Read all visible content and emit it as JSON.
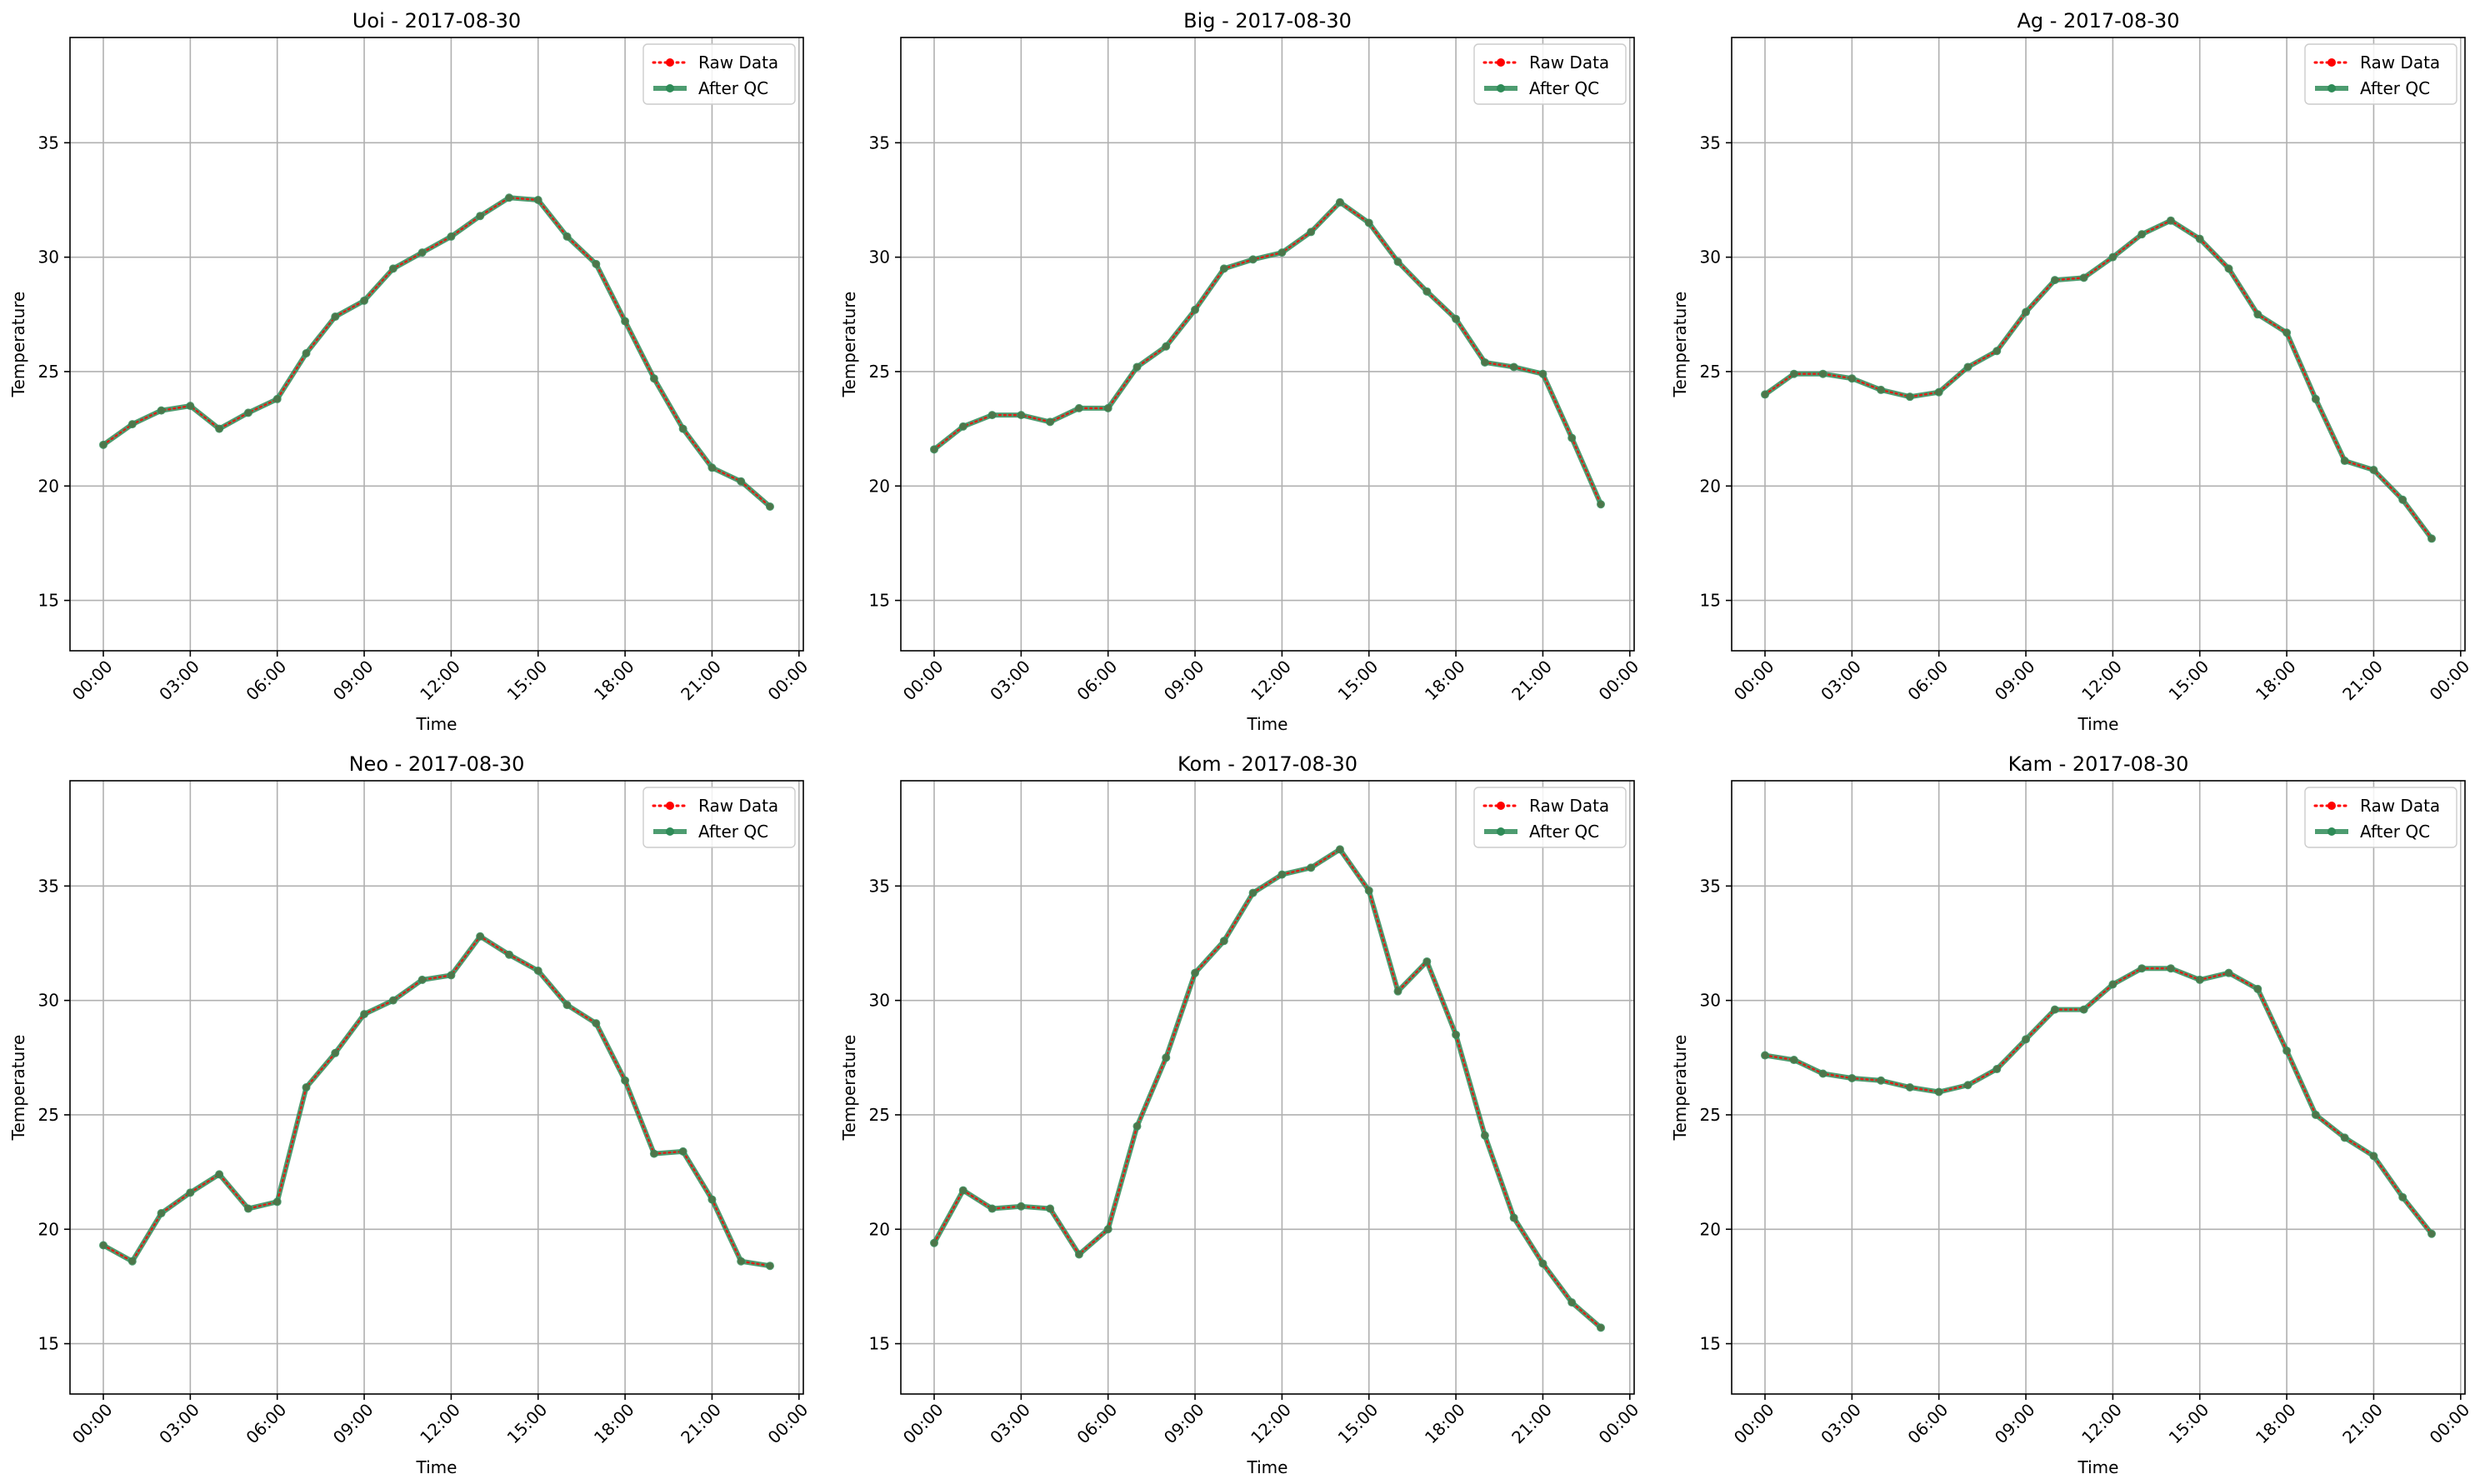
{
  "figure": {
    "legend_labels": {
      "raw": "Raw Data",
      "qc": "After QC"
    },
    "colors": {
      "raw": "#ff0000",
      "qc": "#2e8b57",
      "grid": "#b0b0b0",
      "axes": "#000000"
    }
  },
  "chart_data": [
    {
      "type": "line",
      "title": "Uoi - 2017-08-30",
      "xlabel": "Time",
      "ylabel": "Temperature",
      "xlim": [
        -1.15,
        24.15
      ],
      "ylim": [
        12.8,
        39.6
      ],
      "x_ticks": [
        0,
        3,
        6,
        9,
        12,
        15,
        18,
        21,
        24
      ],
      "x_tick_labels": [
        "00:00",
        "03:00",
        "06:00",
        "09:00",
        "12:00",
        "15:00",
        "18:00",
        "21:00",
        "00:00"
      ],
      "y_ticks": [
        15,
        20,
        25,
        30,
        35
      ],
      "grid": true,
      "legend": "top-right",
      "x": [
        0,
        1,
        2,
        3,
        4,
        5,
        6,
        7,
        8,
        9,
        10,
        11,
        12,
        13,
        14,
        15,
        16,
        17,
        18,
        19,
        20,
        21,
        22,
        23
      ],
      "series": [
        {
          "name": "Raw Data",
          "color": "#ff0000",
          "style": "dotted",
          "values": [
            21.8,
            22.7,
            23.3,
            23.5,
            22.5,
            23.2,
            23.8,
            25.8,
            27.4,
            28.1,
            29.5,
            30.2,
            30.9,
            31.8,
            32.6,
            32.5,
            30.9,
            29.7,
            27.2,
            24.7,
            22.5,
            20.8,
            20.2,
            19.1
          ]
        },
        {
          "name": "After QC",
          "color": "#2e8b57",
          "style": "solid",
          "values": [
            21.8,
            22.7,
            23.3,
            23.5,
            22.5,
            23.2,
            23.8,
            25.8,
            27.4,
            28.1,
            29.5,
            30.2,
            30.9,
            31.8,
            32.6,
            32.5,
            30.9,
            29.7,
            27.2,
            24.7,
            22.5,
            20.8,
            20.2,
            19.1
          ]
        }
      ]
    },
    {
      "type": "line",
      "title": "Big - 2017-08-30",
      "xlabel": "Time",
      "ylabel": "Temperature",
      "xlim": [
        -1.15,
        24.15
      ],
      "ylim": [
        12.8,
        39.6
      ],
      "x_ticks": [
        0,
        3,
        6,
        9,
        12,
        15,
        18,
        21,
        24
      ],
      "x_tick_labels": [
        "00:00",
        "03:00",
        "06:00",
        "09:00",
        "12:00",
        "15:00",
        "18:00",
        "21:00",
        "00:00"
      ],
      "y_ticks": [
        15,
        20,
        25,
        30,
        35
      ],
      "grid": true,
      "legend": "top-right",
      "x": [
        0,
        1,
        2,
        3,
        4,
        5,
        6,
        7,
        8,
        9,
        10,
        11,
        12,
        13,
        14,
        15,
        16,
        17,
        18,
        19,
        20,
        21,
        22,
        23
      ],
      "series": [
        {
          "name": "Raw Data",
          "color": "#ff0000",
          "style": "dotted",
          "values": [
            21.6,
            22.6,
            23.1,
            23.1,
            22.8,
            23.4,
            23.4,
            25.2,
            26.1,
            27.7,
            29.5,
            29.9,
            30.2,
            31.1,
            32.4,
            31.5,
            29.8,
            28.5,
            27.3,
            25.4,
            25.2,
            24.9,
            22.1,
            19.2
          ]
        },
        {
          "name": "After QC",
          "color": "#2e8b57",
          "style": "solid",
          "values": [
            21.6,
            22.6,
            23.1,
            23.1,
            22.8,
            23.4,
            23.4,
            25.2,
            26.1,
            27.7,
            29.5,
            29.9,
            30.2,
            31.1,
            32.4,
            31.5,
            29.8,
            28.5,
            27.3,
            25.4,
            25.2,
            24.9,
            22.1,
            19.2
          ]
        }
      ]
    },
    {
      "type": "line",
      "title": "Ag - 2017-08-30",
      "xlabel": "Time",
      "ylabel": "Temperature",
      "xlim": [
        -1.15,
        24.15
      ],
      "ylim": [
        12.8,
        39.6
      ],
      "x_ticks": [
        0,
        3,
        6,
        9,
        12,
        15,
        18,
        21,
        24
      ],
      "x_tick_labels": [
        "00:00",
        "03:00",
        "06:00",
        "09:00",
        "12:00",
        "15:00",
        "18:00",
        "21:00",
        "00:00"
      ],
      "y_ticks": [
        15,
        20,
        25,
        30,
        35
      ],
      "grid": true,
      "legend": "top-right",
      "x": [
        0,
        1,
        2,
        3,
        4,
        5,
        6,
        7,
        8,
        9,
        10,
        11,
        12,
        13,
        14,
        15,
        16,
        17,
        18,
        19,
        20,
        21,
        22,
        23
      ],
      "series": [
        {
          "name": "Raw Data",
          "color": "#ff0000",
          "style": "dotted",
          "values": [
            24.0,
            24.9,
            24.9,
            24.7,
            24.2,
            23.9,
            24.1,
            25.2,
            25.9,
            27.6,
            29.0,
            29.1,
            30.0,
            31.0,
            31.6,
            30.8,
            29.5,
            27.5,
            26.7,
            23.8,
            21.1,
            20.7,
            19.4,
            17.7
          ]
        },
        {
          "name": "After QC",
          "color": "#2e8b57",
          "style": "solid",
          "values": [
            24.0,
            24.9,
            24.9,
            24.7,
            24.2,
            23.9,
            24.1,
            25.2,
            25.9,
            27.6,
            29.0,
            29.1,
            30.0,
            31.0,
            31.6,
            30.8,
            29.5,
            27.5,
            26.7,
            23.8,
            21.1,
            20.7,
            19.4,
            17.7
          ]
        }
      ]
    },
    {
      "type": "line",
      "title": "Neo - 2017-08-30",
      "xlabel": "Time",
      "ylabel": "Temperature",
      "xlim": [
        -1.15,
        24.15
      ],
      "ylim": [
        12.8,
        39.6
      ],
      "x_ticks": [
        0,
        3,
        6,
        9,
        12,
        15,
        18,
        21,
        24
      ],
      "x_tick_labels": [
        "00:00",
        "03:00",
        "06:00",
        "09:00",
        "12:00",
        "15:00",
        "18:00",
        "21:00",
        "00:00"
      ],
      "y_ticks": [
        15,
        20,
        25,
        30,
        35
      ],
      "grid": true,
      "legend": "top-right",
      "x": [
        0,
        1,
        2,
        3,
        4,
        5,
        6,
        7,
        8,
        9,
        10,
        11,
        12,
        13,
        14,
        15,
        16,
        17,
        18,
        19,
        20,
        21,
        22,
        23
      ],
      "series": [
        {
          "name": "Raw Data",
          "color": "#ff0000",
          "style": "dotted",
          "values": [
            19.3,
            18.6,
            20.7,
            21.6,
            22.4,
            20.9,
            21.2,
            26.2,
            27.7,
            29.4,
            30.0,
            30.9,
            31.1,
            32.8,
            32.0,
            31.3,
            29.8,
            29.0,
            26.5,
            23.3,
            23.4,
            21.3,
            18.6,
            18.4
          ]
        },
        {
          "name": "After QC",
          "color": "#2e8b57",
          "style": "solid",
          "values": [
            19.3,
            18.6,
            20.7,
            21.6,
            22.4,
            20.9,
            21.2,
            26.2,
            27.7,
            29.4,
            30.0,
            30.9,
            31.1,
            32.8,
            32.0,
            31.3,
            29.8,
            29.0,
            26.5,
            23.3,
            23.4,
            21.3,
            18.6,
            18.4
          ]
        }
      ]
    },
    {
      "type": "line",
      "title": "Kom - 2017-08-30",
      "xlabel": "Time",
      "ylabel": "Temperature",
      "xlim": [
        -1.15,
        24.15
      ],
      "ylim": [
        12.8,
        39.6
      ],
      "x_ticks": [
        0,
        3,
        6,
        9,
        12,
        15,
        18,
        21,
        24
      ],
      "x_tick_labels": [
        "00:00",
        "03:00",
        "06:00",
        "09:00",
        "12:00",
        "15:00",
        "18:00",
        "21:00",
        "00:00"
      ],
      "y_ticks": [
        15,
        20,
        25,
        30,
        35
      ],
      "grid": true,
      "legend": "top-right",
      "x": [
        0,
        1,
        2,
        3,
        4,
        5,
        6,
        7,
        8,
        9,
        10,
        11,
        12,
        13,
        14,
        15,
        16,
        17,
        18,
        19,
        20,
        21,
        22,
        23
      ],
      "series": [
        {
          "name": "Raw Data",
          "color": "#ff0000",
          "style": "dotted",
          "values": [
            19.4,
            21.7,
            20.9,
            21.0,
            20.9,
            18.9,
            20.0,
            24.5,
            27.5,
            31.2,
            32.6,
            34.7,
            35.5,
            35.8,
            36.6,
            34.8,
            30.4,
            31.7,
            28.5,
            24.1,
            20.5,
            18.5,
            16.8,
            15.7
          ]
        },
        {
          "name": "After QC",
          "color": "#2e8b57",
          "style": "solid",
          "values": [
            19.4,
            21.7,
            20.9,
            21.0,
            20.9,
            18.9,
            20.0,
            24.5,
            27.5,
            31.2,
            32.6,
            34.7,
            35.5,
            35.8,
            36.6,
            34.8,
            30.4,
            31.7,
            28.5,
            24.1,
            20.5,
            18.5,
            16.8,
            15.7
          ]
        }
      ]
    },
    {
      "type": "line",
      "title": "Kam - 2017-08-30",
      "xlabel": "Time",
      "ylabel": "Temperature",
      "xlim": [
        -1.15,
        24.15
      ],
      "ylim": [
        12.8,
        39.6
      ],
      "x_ticks": [
        0,
        3,
        6,
        9,
        12,
        15,
        18,
        21,
        24
      ],
      "x_tick_labels": [
        "00:00",
        "03:00",
        "06:00",
        "09:00",
        "12:00",
        "15:00",
        "18:00",
        "21:00",
        "00:00"
      ],
      "y_ticks": [
        15,
        20,
        25,
        30,
        35
      ],
      "grid": true,
      "legend": "top-right",
      "x": [
        0,
        1,
        2,
        3,
        4,
        5,
        6,
        7,
        8,
        9,
        10,
        11,
        12,
        13,
        14,
        15,
        16,
        17,
        18,
        19,
        20,
        21,
        22,
        23
      ],
      "series": [
        {
          "name": "Raw Data",
          "color": "#ff0000",
          "style": "dotted",
          "values": [
            27.6,
            27.4,
            26.8,
            26.6,
            26.5,
            26.2,
            26.0,
            26.3,
            27.0,
            28.3,
            29.6,
            29.6,
            30.7,
            31.4,
            31.4,
            30.9,
            31.2,
            30.5,
            27.8,
            25.0,
            24.0,
            23.2,
            21.4,
            19.8
          ]
        },
        {
          "name": "After QC",
          "color": "#2e8b57",
          "style": "solid",
          "values": [
            27.6,
            27.4,
            26.8,
            26.6,
            26.5,
            26.2,
            26.0,
            26.3,
            27.0,
            28.3,
            29.6,
            29.6,
            30.7,
            31.4,
            31.4,
            30.9,
            31.2,
            30.5,
            27.8,
            25.0,
            24.0,
            23.2,
            21.4,
            19.8
          ]
        }
      ]
    }
  ]
}
